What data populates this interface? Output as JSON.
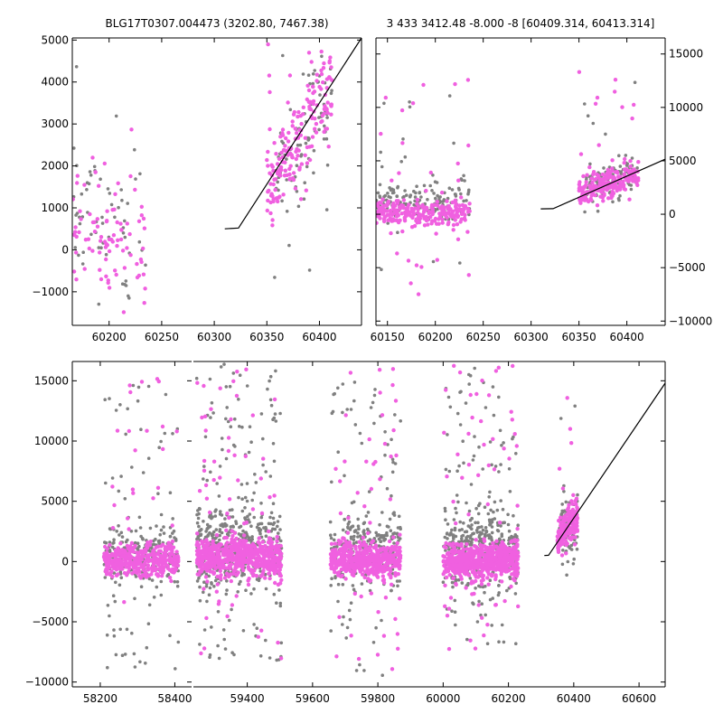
{
  "figure": {
    "title_left": "BLG17T0307.004473 (3202.80, 7467.38)",
    "title_right": "3 433 3412.48 -8.000 -8 [60409.314, 60413.314]",
    "colors": {
      "obs_a": "#808080",
      "obs_b": "#f060e0",
      "model": "#000000"
    }
  },
  "chart_data": [
    {
      "type": "scatter",
      "title": "BLG17T0307.004473 (3202.80, 7467.38)",
      "xlim": [
        60165,
        60440
      ],
      "ylim": [
        -1800,
        5050
      ],
      "xticks": [
        60200,
        60250,
        60300,
        60350,
        60400
      ],
      "yticks": [
        -1000,
        0,
        1000,
        2000,
        3000,
        4000,
        5000
      ],
      "ytick_side": "left",
      "seed": 11,
      "clusters": [
        {
          "series": "gray",
          "n": 60,
          "x": [
            60165,
            60235
          ],
          "center": 700,
          "spread": 900,
          "outlier_frac": 0.15,
          "outlier_range": [
            -1300,
            4400
          ]
        },
        {
          "series": "magenta",
          "n": 90,
          "x": [
            60165,
            60235
          ],
          "center": 300,
          "spread": 800,
          "outlier_frac": 0.1,
          "outlier_range": [
            -1500,
            3100
          ]
        },
        {
          "series": "gray",
          "n": 90,
          "x": [
            60355,
            60412
          ],
          "trend": [
            [
              60355,
              1500
            ],
            [
              60412,
              3800
            ]
          ],
          "spread": 700,
          "outlier_frac": 0.06,
          "outlier_range": [
            -1300,
            4900
          ]
        },
        {
          "series": "magenta",
          "n": 190,
          "x": [
            60350,
            60412
          ],
          "trend": [
            [
              60350,
              1600
            ],
            [
              60412,
              3900
            ]
          ],
          "spread": 550,
          "outlier_frac": 0.05,
          "outlier_range": [
            600,
            5000
          ]
        }
      ],
      "model_line": [
        [
          60310,
          500
        ],
        [
          60323,
          520
        ],
        [
          60440,
          5050
        ]
      ]
    },
    {
      "type": "scatter",
      "title": "3 433 3412.48 -8.000 -8 [60409.314, 60413.314]",
      "xlim": [
        60138,
        60440
      ],
      "ylim": [
        -10400,
        16500
      ],
      "xticks": [
        60150,
        60200,
        60250,
        60300,
        60350,
        60400
      ],
      "yticks": [
        -10000,
        -5000,
        0,
        5000,
        10000,
        15000
      ],
      "ytick_side": "right",
      "seed": 23,
      "clusters": [
        {
          "series": "gray",
          "n": 170,
          "x": [
            60138,
            60236
          ],
          "center": 1200,
          "spread": 800,
          "outlier_frac": 0.1,
          "outlier_range": [
            -6500,
            12000
          ]
        },
        {
          "series": "magenta",
          "n": 260,
          "x": [
            60138,
            60236
          ],
          "center": 150,
          "spread": 600,
          "outlier_frac": 0.08,
          "outlier_range": [
            -7500,
            15000
          ]
        },
        {
          "series": "gray",
          "n": 110,
          "x": [
            60355,
            60412
          ],
          "trend": [
            [
              60355,
              2500
            ],
            [
              60412,
              4000
            ]
          ],
          "spread": 900,
          "outlier_frac": 0.08,
          "outlier_range": [
            -1200,
            12500
          ]
        },
        {
          "series": "magenta",
          "n": 220,
          "x": [
            60350,
            60412
          ],
          "trend": [
            [
              60350,
              2000
            ],
            [
              60412,
              3700
            ]
          ],
          "spread": 650,
          "outlier_frac": 0.04,
          "outlier_range": [
            800,
            13700
          ]
        }
      ],
      "model_line": [
        [
          60310,
          500
        ],
        [
          60323,
          520
        ],
        [
          60440,
          5150
        ]
      ]
    },
    {
      "type": "scatter",
      "panels": [
        {
          "xlim": [
            58125,
            58445
          ],
          "xticks": [
            58200,
            58400
          ],
          "seed": 31,
          "clusters": [
            {
              "series": "gray",
              "n": 280,
              "x": [
                58210,
                58410
              ],
              "center": 700,
              "spread": 1300,
              "outlier_frac": 0.2,
              "outlier_range": [
                -8900,
                15500
              ]
            },
            {
              "series": "magenta",
              "n": 420,
              "x": [
                58210,
                58410
              ],
              "center": 150,
              "spread": 650,
              "outlier_frac": 0.09,
              "outlier_range": [
                -3500,
                15800
              ]
            }
          ]
        },
        {
          "xlim": [
            59235,
            60680
          ],
          "xticks": [
            59400,
            59600,
            59800,
            60000,
            60200,
            60400,
            60600
          ],
          "seed": 47,
          "clusters": [
            {
              "series": "gray",
              "n": 520,
              "x": [
                59245,
                59505
              ],
              "center": 1200,
              "spread": 1700,
              "outlier_frac": 0.25,
              "outlier_range": [
                -8600,
                16500
              ]
            },
            {
              "series": "magenta",
              "n": 700,
              "x": [
                59245,
                59505
              ],
              "center": 350,
              "spread": 800,
              "outlier_frac": 0.08,
              "outlier_range": [
                -8600,
                16000
              ]
            },
            {
              "series": "gray",
              "n": 330,
              "x": [
                59655,
                59870
              ],
              "center": 900,
              "spread": 1400,
              "outlier_frac": 0.22,
              "outlier_range": [
                -9700,
                15000
              ]
            },
            {
              "series": "magenta",
              "n": 520,
              "x": [
                59655,
                59870
              ],
              "center": 150,
              "spread": 700,
              "outlier_frac": 0.09,
              "outlier_range": [
                -10000,
                16000
              ]
            },
            {
              "series": "gray",
              "n": 470,
              "x": [
                60000,
                60230
              ],
              "center": 1000,
              "spread": 1500,
              "outlier_frac": 0.22,
              "outlier_range": [
                -7300,
                16300
              ]
            },
            {
              "series": "magenta",
              "n": 680,
              "x": [
                60000,
                60230
              ],
              "center": 100,
              "spread": 750,
              "outlier_frac": 0.1,
              "outlier_range": [
                -7300,
                16500
              ]
            },
            {
              "series": "gray",
              "n": 70,
              "x": [
                60355,
                60412
              ],
              "center": 2800,
              "spread": 1500,
              "outlier_frac": 0.15,
              "outlier_range": [
                -1300,
                13500
              ]
            },
            {
              "series": "magenta",
              "n": 170,
              "x": [
                60350,
                60412
              ],
              "trend": [
                [
                  60350,
                  1800
                ],
                [
                  60412,
                  3800
                ]
              ],
              "spread": 800,
              "outlier_frac": 0.07,
              "outlier_range": [
                -300,
                13700
              ]
            }
          ],
          "model_line": [
            [
              60310,
              500
            ],
            [
              60323,
              520
            ],
            [
              60680,
              14800
            ]
          ]
        }
      ],
      "ylim": [
        -10400,
        16600
      ],
      "yticks": [
        -10000,
        -5000,
        0,
        5000,
        10000,
        15000
      ],
      "ytick_side": "left"
    }
  ]
}
